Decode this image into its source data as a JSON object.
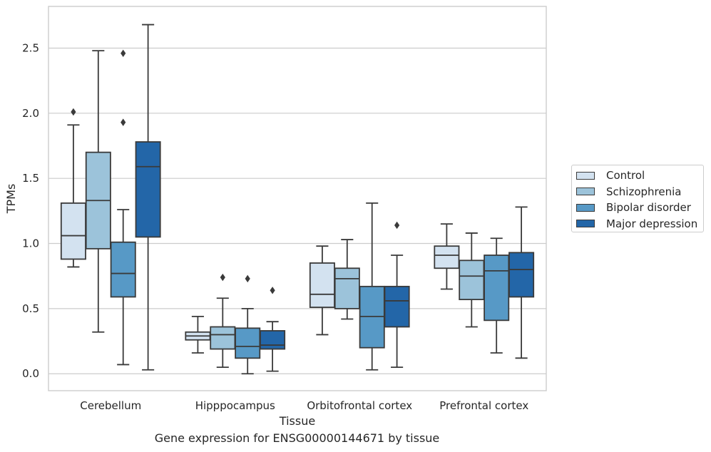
{
  "chart_data": {
    "type": "box",
    "xlabel": "Tissue",
    "ylabel": "TPMs",
    "ylim": [
      -0.13,
      2.82
    ],
    "yticks": [
      0.0,
      0.5,
      1.0,
      1.5,
      2.0,
      2.5
    ],
    "ytick_labels": [
      "0.0",
      "0.5",
      "1.0",
      "1.5",
      "2.0",
      "2.5"
    ],
    "grid": "horizontal",
    "legend_position": "right",
    "categories": [
      "Cerebellum",
      "Hipppocampus",
      "Orbitofrontal cortex",
      "Prefrontal cortex"
    ],
    "series": [
      {
        "name": "Control",
        "color": "#d3e2f0",
        "boxes": [
          {
            "q1": 0.88,
            "median": 1.06,
            "q3": 1.31,
            "whisker_low": 0.82,
            "whisker_high": 1.91,
            "outliers": [
              2.01
            ]
          },
          {
            "q1": 0.26,
            "median": 0.29,
            "q3": 0.32,
            "whisker_low": 0.16,
            "whisker_high": 0.44,
            "outliers": []
          },
          {
            "q1": 0.51,
            "median": 0.61,
            "q3": 0.85,
            "whisker_low": 0.3,
            "whisker_high": 0.98,
            "outliers": []
          },
          {
            "q1": 0.81,
            "median": 0.91,
            "q3": 0.98,
            "whisker_low": 0.65,
            "whisker_high": 1.15,
            "outliers": []
          }
        ]
      },
      {
        "name": "Schizophrenia",
        "color": "#9cc3da",
        "boxes": [
          {
            "q1": 0.96,
            "median": 1.33,
            "q3": 1.7,
            "whisker_low": 0.32,
            "whisker_high": 2.48,
            "outliers": []
          },
          {
            "q1": 0.19,
            "median": 0.3,
            "q3": 0.36,
            "whisker_low": 0.05,
            "whisker_high": 0.58,
            "outliers": [
              0.74
            ]
          },
          {
            "q1": 0.5,
            "median": 0.73,
            "q3": 0.81,
            "whisker_low": 0.42,
            "whisker_high": 1.03,
            "outliers": []
          },
          {
            "q1": 0.57,
            "median": 0.75,
            "q3": 0.87,
            "whisker_low": 0.36,
            "whisker_high": 1.08,
            "outliers": []
          }
        ]
      },
      {
        "name": "Bipolar disorder",
        "color": "#5799c6",
        "boxes": [
          {
            "q1": 0.59,
            "median": 0.77,
            "q3": 1.01,
            "whisker_low": 0.07,
            "whisker_high": 1.26,
            "outliers": [
              1.93,
              2.46
            ]
          },
          {
            "q1": 0.12,
            "median": 0.21,
            "q3": 0.35,
            "whisker_low": 0.0,
            "whisker_high": 0.5,
            "outliers": [
              0.73
            ]
          },
          {
            "q1": 0.2,
            "median": 0.44,
            "q3": 0.67,
            "whisker_low": 0.03,
            "whisker_high": 1.31,
            "outliers": []
          },
          {
            "q1": 0.41,
            "median": 0.79,
            "q3": 0.91,
            "whisker_low": 0.16,
            "whisker_high": 1.04,
            "outliers": []
          }
        ]
      },
      {
        "name": "Major depression",
        "color": "#2366a8",
        "boxes": [
          {
            "q1": 1.05,
            "median": 1.59,
            "q3": 1.78,
            "whisker_low": 0.03,
            "whisker_high": 2.68,
            "outliers": []
          },
          {
            "q1": 0.19,
            "median": 0.22,
            "q3": 0.33,
            "whisker_low": 0.02,
            "whisker_high": 0.4,
            "outliers": [
              0.64
            ]
          },
          {
            "q1": 0.36,
            "median": 0.56,
            "q3": 0.67,
            "whisker_low": 0.05,
            "whisker_high": 0.91,
            "outliers": [
              1.14
            ]
          },
          {
            "q1": 0.59,
            "median": 0.8,
            "q3": 0.93,
            "whisker_low": 0.12,
            "whisker_high": 1.28,
            "outliers": []
          }
        ]
      }
    ]
  },
  "caption": "Gene expression for ENSG00000144671 by tissue",
  "style": {
    "gridline_color": "#cccccc",
    "line_color": "#3a3a3a",
    "text_color": "#262626"
  }
}
